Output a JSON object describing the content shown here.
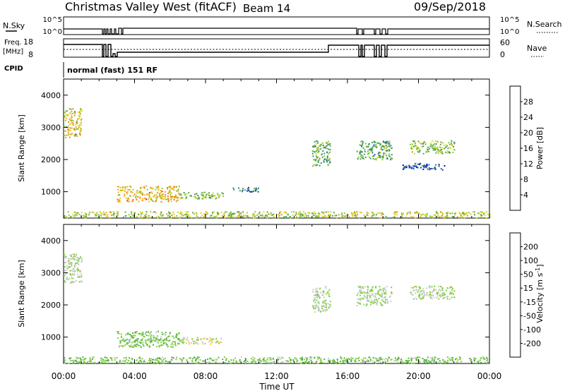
{
  "header": {
    "radar": "Christmas Valley West (fitACF)",
    "beam": "Beam 14",
    "date": "09/Sep/2018"
  },
  "panel_labels": {
    "nsky": "N.Sky",
    "nsky_hi": "10^5",
    "nsky_lo": "10^0",
    "nsearch": "N.Search",
    "nsearch_hi": "10^5",
    "nsearch_lo": "10^0",
    "freq": "Freq.",
    "freq_unit": "[MHz]",
    "freq_hi": "18",
    "freq_lo": "8",
    "nave": "Nave",
    "nave_hi": "60",
    "nave_lo": "0",
    "cpid": "CPID",
    "cpid_value": "normal (fast) 151 RF"
  },
  "colorbar_power": {
    "label": "Power [dB]",
    "ticks": [
      "28",
      "24",
      "20",
      "16",
      "12",
      "8",
      "4"
    ],
    "colors": [
      "#0000ff",
      "#1f3fa8",
      "#2f6fa0",
      "#3a8f6a",
      "#4fa84a",
      "#8ec33a",
      "#d8d828",
      "#f0b020",
      "#f08018",
      "#e84010",
      "#e00000"
    ]
  },
  "colorbar_velocity": {
    "label": "Velocity [m s",
    "label_sup": "-1",
    "label_end": "]",
    "ticks": [
      "200",
      "100",
      "50",
      "15",
      "-15",
      "-50",
      "-100",
      "-200"
    ],
    "colors": [
      "#1a2fb0",
      "#2060c0",
      "#2a8a3a",
      "#50b040",
      "#80d040",
      "#c8c8c8",
      "#f0d040",
      "#f0a020",
      "#f06010",
      "#e00000"
    ]
  },
  "axes": {
    "ylabel": "Slant Range [km]",
    "yticks": [
      "4000",
      "3000",
      "2000",
      "1000"
    ],
    "xticks": [
      "00:00",
      "04:00",
      "08:00",
      "12:00",
      "16:00",
      "20:00",
      "00:00"
    ],
    "xlabel": "Time UT"
  },
  "chart_data": [
    {
      "type": "heatmap",
      "title": "Power [dB]",
      "xlabel": "Time UT",
      "ylabel": "Slant Range [km]",
      "xlim": [
        0,
        24
      ],
      "ylim": [
        180,
        4500
      ],
      "zlim": [
        0,
        30
      ],
      "regions": [
        {
          "t": [
            0.0,
            1.0
          ],
          "r": [
            2700,
            3600
          ],
          "z": 18
        },
        {
          "t": [
            3.0,
            6.5
          ],
          "r": [
            700,
            1200
          ],
          "z": 20
        },
        {
          "t": [
            6.5,
            9.0
          ],
          "r": [
            800,
            1000
          ],
          "z": 14
        },
        {
          "t": [
            9.5,
            11.0
          ],
          "r": [
            1000,
            1150
          ],
          "z": 8
        },
        {
          "t": [
            14.0,
            15.0
          ],
          "r": [
            1800,
            2600
          ],
          "z": 12
        },
        {
          "t": [
            16.5,
            18.5
          ],
          "r": [
            2000,
            2600
          ],
          "z": 12
        },
        {
          "t": [
            19.5,
            22.0
          ],
          "r": [
            2200,
            2600
          ],
          "z": 14
        },
        {
          "t": [
            19.0,
            21.5
          ],
          "r": [
            1700,
            1900
          ],
          "z": 6
        },
        {
          "t": [
            0.0,
            24.0
          ],
          "r": [
            200,
            400
          ],
          "z": 16
        }
      ]
    },
    {
      "type": "heatmap",
      "title": "Velocity [m s-1]",
      "xlabel": "Time UT",
      "ylabel": "Slant Range [km]",
      "xlim": [
        0,
        24
      ],
      "ylim": [
        180,
        4500
      ],
      "zlim": [
        -200,
        200
      ],
      "regions": [
        {
          "t": [
            0.0,
            1.0
          ],
          "r": [
            2700,
            3600
          ],
          "z": 0
        },
        {
          "t": [
            3.0,
            6.5
          ],
          "r": [
            700,
            1200
          ],
          "z": -30
        },
        {
          "t": [
            6.5,
            9.0
          ],
          "r": [
            800,
            1000
          ],
          "z": 20
        },
        {
          "t": [
            14.0,
            15.0
          ],
          "r": [
            1800,
            2600
          ],
          "z": 0
        },
        {
          "t": [
            16.5,
            18.5
          ],
          "r": [
            2000,
            2600
          ],
          "z": 0
        },
        {
          "t": [
            19.5,
            22.0
          ],
          "r": [
            2200,
            2600
          ],
          "z": 0
        },
        {
          "t": [
            0.0,
            24.0
          ],
          "r": [
            200,
            400
          ],
          "z": -30
        }
      ]
    }
  ]
}
